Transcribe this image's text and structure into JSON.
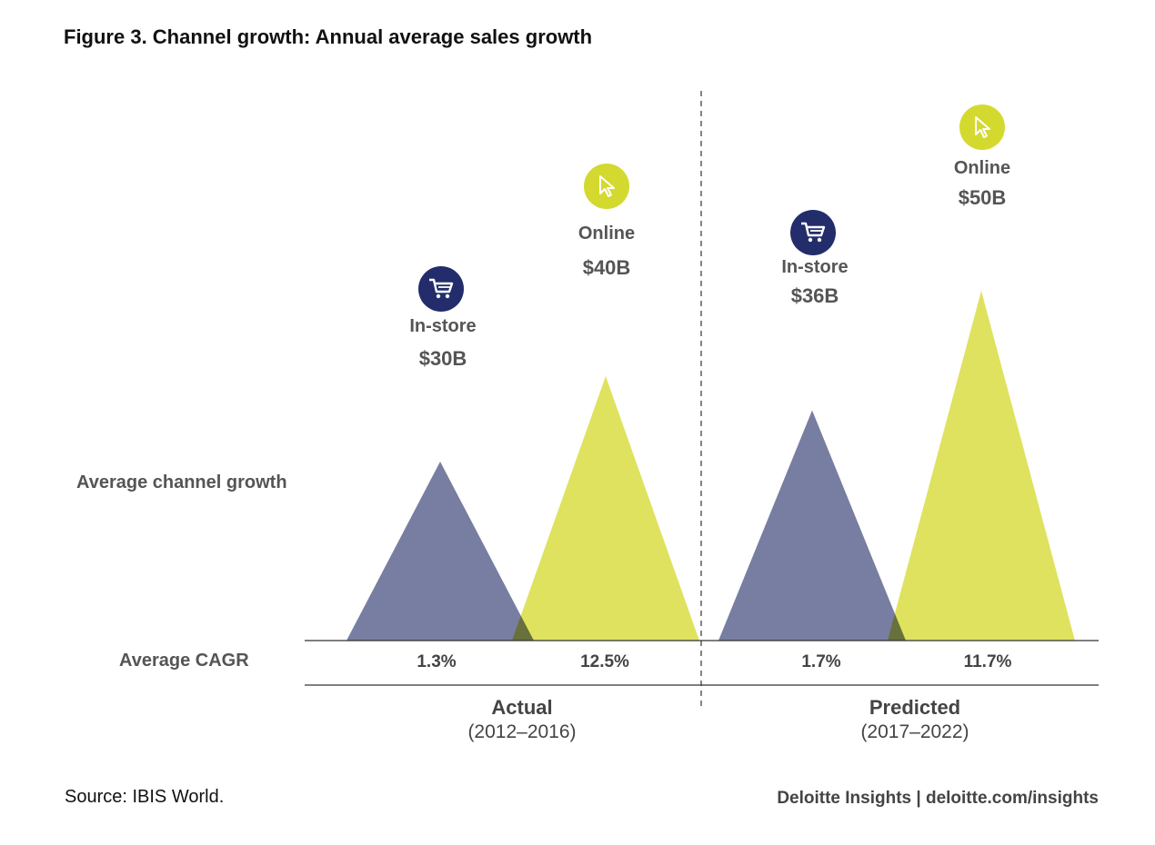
{
  "title": "Figure 3. Channel growth: Annual average sales growth",
  "ylabel": "Average channel growth",
  "cagr_label": "Average CAGR",
  "source": "Source: IBIS World.",
  "brand": "Deloitte Insights | deloitte.com/insights",
  "colors": {
    "instore": "#5f6790",
    "online": "#dcdf50",
    "instore_icon": "#232d6b",
    "online_icon": "#d4d92f"
  },
  "chart_data": {
    "type": "area",
    "groups": [
      {
        "name": "Actual",
        "range": "(2012–2016)"
      },
      {
        "name": "Predicted",
        "range": "(2017–2022)"
      }
    ],
    "series": [
      {
        "group": 0,
        "channel": "instore",
        "label": "In-store",
        "value_label": "$30B",
        "value": 30,
        "cagr": "1.3%",
        "icon": "shopping-cart-icon"
      },
      {
        "group": 0,
        "channel": "online",
        "label": "Online",
        "value_label": "$40B",
        "value": 40,
        "cagr": "12.5%",
        "icon": "cursor-icon"
      },
      {
        "group": 1,
        "channel": "instore",
        "label": "In-store",
        "value_label": "$36B",
        "value": 36,
        "cagr": "1.7%",
        "icon": "shopping-cart-icon"
      },
      {
        "group": 1,
        "channel": "online",
        "label": "Online",
        "value_label": "$50B",
        "value": 50,
        "cagr": "11.7%",
        "icon": "cursor-icon"
      }
    ]
  }
}
